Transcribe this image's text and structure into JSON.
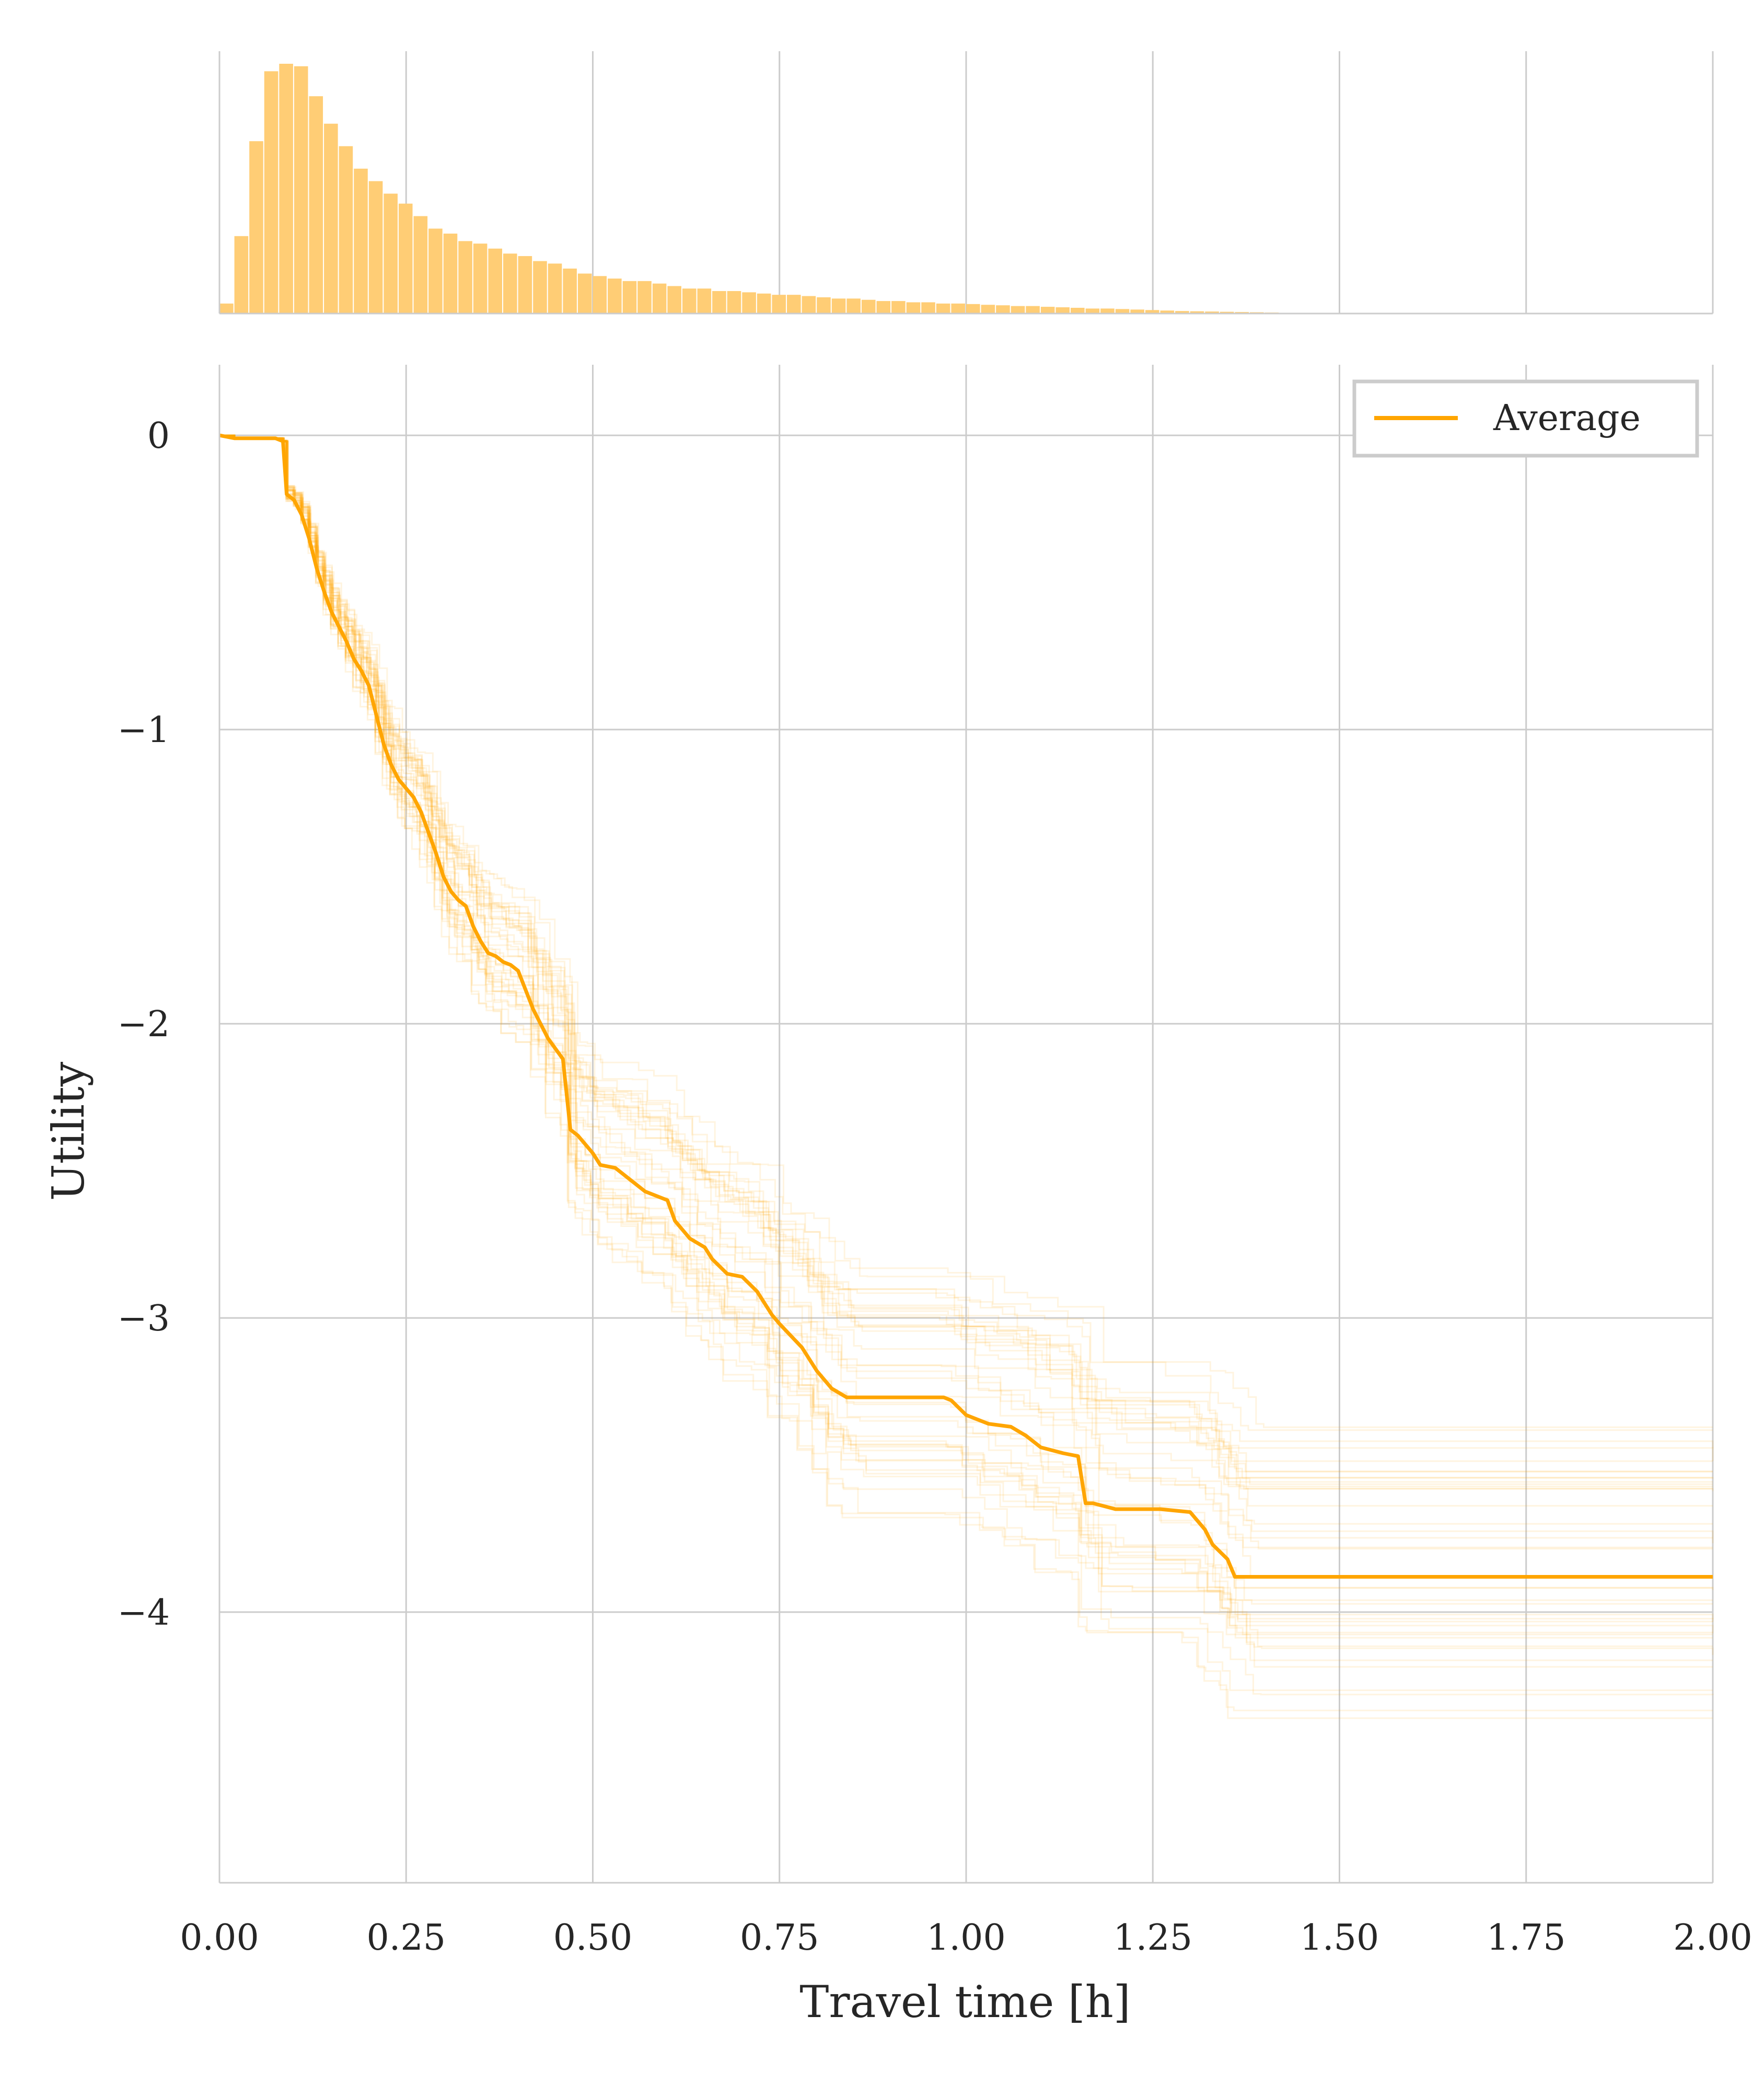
{
  "colors": {
    "accent": "#FFA500",
    "histogram_fill": "#FFCD75",
    "grid": "#CCCCCC",
    "legend_border": "#CCCCCC",
    "text": "#262626"
  },
  "chart_data": [
    {
      "type": "bar",
      "panel": "top-marginal-histogram",
      "title": "",
      "xlabel": "",
      "ylabel": "",
      "xlim": [
        0,
        2.0
      ],
      "y_axis_visible": false,
      "grid": "vertical only",
      "bin_width": 0.02,
      "bin_start": 0.0,
      "values": [
        0.04,
        0.31,
        0.69,
        0.97,
        1.0,
        0.99,
        0.87,
        0.76,
        0.67,
        0.58,
        0.53,
        0.48,
        0.44,
        0.39,
        0.34,
        0.32,
        0.29,
        0.28,
        0.26,
        0.24,
        0.23,
        0.21,
        0.2,
        0.18,
        0.16,
        0.15,
        0.14,
        0.13,
        0.13,
        0.12,
        0.11,
        0.1,
        0.1,
        0.09,
        0.09,
        0.085,
        0.08,
        0.075,
        0.075,
        0.07,
        0.065,
        0.06,
        0.06,
        0.055,
        0.05,
        0.05,
        0.045,
        0.045,
        0.04,
        0.04,
        0.038,
        0.035,
        0.033,
        0.03,
        0.03,
        0.027,
        0.025,
        0.023,
        0.02,
        0.02,
        0.018,
        0.016,
        0.014,
        0.012,
        0.01,
        0.009,
        0.008,
        0.007,
        0.006,
        0.005,
        0.004,
        0.003,
        0.002,
        0.002,
        0.001,
        0.001,
        0.001,
        0.0,
        0.0,
        0.0
      ]
    },
    {
      "type": "line",
      "panel": "main",
      "title": "",
      "xlabel": "Travel time [h]",
      "ylabel": "Utility",
      "xlim": [
        0.0,
        2.0
      ],
      "ylim": [
        -4.92,
        0.24
      ],
      "xticks": [
        0.0,
        0.25,
        0.5,
        0.75,
        1.0,
        1.25,
        1.5,
        1.75,
        2.0
      ],
      "xtick_labels": [
        "0.00",
        "0.25",
        "0.50",
        "0.75",
        "1.00",
        "1.25",
        "1.50",
        "1.75",
        "2.00"
      ],
      "yticks": [
        0,
        -1,
        -2,
        -3,
        -4
      ],
      "ytick_labels": [
        "0",
        "−1",
        "−2",
        "−3",
        "−4"
      ],
      "grid": true,
      "legend": {
        "position": "top-right",
        "entries": [
          "Average"
        ]
      },
      "series": [
        {
          "name": "Average",
          "role": "average",
          "color": "#FFA500",
          "x": [
            0.0,
            0.02,
            0.04,
            0.075,
            0.085,
            0.09,
            0.1,
            0.11,
            0.12,
            0.13,
            0.14,
            0.15,
            0.16,
            0.17,
            0.18,
            0.19,
            0.2,
            0.21,
            0.22,
            0.23,
            0.24,
            0.25,
            0.26,
            0.27,
            0.28,
            0.29,
            0.3,
            0.31,
            0.32,
            0.33,
            0.34,
            0.35,
            0.36,
            0.37,
            0.38,
            0.39,
            0.4,
            0.42,
            0.44,
            0.46,
            0.47,
            0.48,
            0.49,
            0.5,
            0.51,
            0.53,
            0.55,
            0.57,
            0.6,
            0.61,
            0.63,
            0.65,
            0.66,
            0.68,
            0.7,
            0.72,
            0.74,
            0.75,
            0.78,
            0.8,
            0.82,
            0.84,
            0.85,
            0.97,
            0.98,
            1.0,
            1.03,
            1.06,
            1.08,
            1.1,
            1.13,
            1.15,
            1.16,
            1.17,
            1.2,
            1.26,
            1.3,
            1.32,
            1.33,
            1.35,
            1.36,
            1.37,
            2.0
          ],
          "y": [
            0.0,
            -0.01,
            -0.01,
            -0.01,
            -0.02,
            -0.2,
            -0.22,
            -0.27,
            -0.35,
            -0.45,
            -0.53,
            -0.6,
            -0.65,
            -0.7,
            -0.76,
            -0.8,
            -0.85,
            -0.95,
            -1.05,
            -1.12,
            -1.17,
            -1.2,
            -1.23,
            -1.28,
            -1.35,
            -1.42,
            -1.5,
            -1.55,
            -1.58,
            -1.6,
            -1.67,
            -1.72,
            -1.76,
            -1.77,
            -1.79,
            -1.8,
            -1.82,
            -1.95,
            -2.05,
            -2.12,
            -2.36,
            -2.38,
            -2.41,
            -2.44,
            -2.48,
            -2.49,
            -2.53,
            -2.57,
            -2.6,
            -2.67,
            -2.73,
            -2.76,
            -2.8,
            -2.85,
            -2.86,
            -2.91,
            -2.99,
            -3.02,
            -3.1,
            -3.18,
            -3.24,
            -3.27,
            -3.27,
            -3.27,
            -3.28,
            -3.33,
            -3.36,
            -3.37,
            -3.4,
            -3.44,
            -3.46,
            -3.47,
            -3.63,
            -3.63,
            -3.65,
            -3.65,
            -3.66,
            -3.72,
            -3.77,
            -3.82,
            -3.88,
            -3.88,
            -3.88
          ]
        },
        {
          "name": "",
          "role": "realization",
          "count": 40,
          "color": "#FFA500",
          "opacity": 0.12,
          "description_of_spread": "individual step-function runs scattered around the average; final plateau values range roughly from -3.3 to -4.7"
        }
      ]
    }
  ]
}
